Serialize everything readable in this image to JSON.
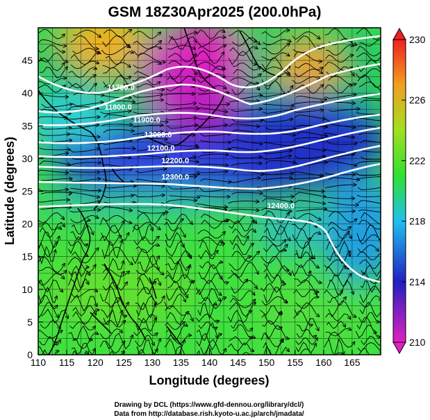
{
  "chart_data": {
    "type": "heatmap",
    "title": "GSM 18Z30Apr2025 (200.0hPa)",
    "xlabel": "Longitude (degrees)",
    "ylabel": "Latitude  (degrees)",
    "xlim": [
      110,
      170
    ],
    "ylim": [
      0,
      50
    ],
    "x_ticks": [
      "110",
      "115",
      "120",
      "125",
      "130",
      "135",
      "140",
      "145",
      "150",
      "155",
      "160",
      "165"
    ],
    "y_ticks": [
      "0",
      "5",
      "10",
      "15",
      "20",
      "25",
      "30",
      "35",
      "40",
      "45"
    ],
    "colorbar": {
      "range": [
        210,
        230
      ],
      "tick_labels": [
        "210",
        "214",
        "218",
        "222",
        "226",
        "230"
      ],
      "colors": [
        "#e020c0",
        "#3020c0",
        "#20c0f0",
        "#30e030",
        "#c0e020",
        "#f0a020",
        "#f02020"
      ]
    },
    "contours": {
      "color": "#ffffff",
      "labels": [
        {
          "text": "11700.0",
          "lon": 124.5,
          "lat": 40.5
        },
        {
          "text": "11800.0",
          "lon": 124.0,
          "lat": 37.5
        },
        {
          "text": "11900.0",
          "lon": 129.0,
          "lat": 35.5
        },
        {
          "text": "12000.0",
          "lon": 131.0,
          "lat": 33.3
        },
        {
          "text": "12100.0",
          "lon": 131.5,
          "lat": 31.2
        },
        {
          "text": "12200.0",
          "lon": 134.0,
          "lat": 29.3
        },
        {
          "text": "12300.0",
          "lon": 134.0,
          "lat": 26.8
        },
        {
          "text": "12400.0",
          "lon": 152.5,
          "lat": 22.4
        }
      ]
    },
    "grid": true
  },
  "credits": {
    "line1": "Drawing by DCL (https://www.gfd-dennou.org/library/dcl/)",
    "line2": "Data from http://database.rish.kyoto-u.ac.jp/arch/jmadata/"
  }
}
